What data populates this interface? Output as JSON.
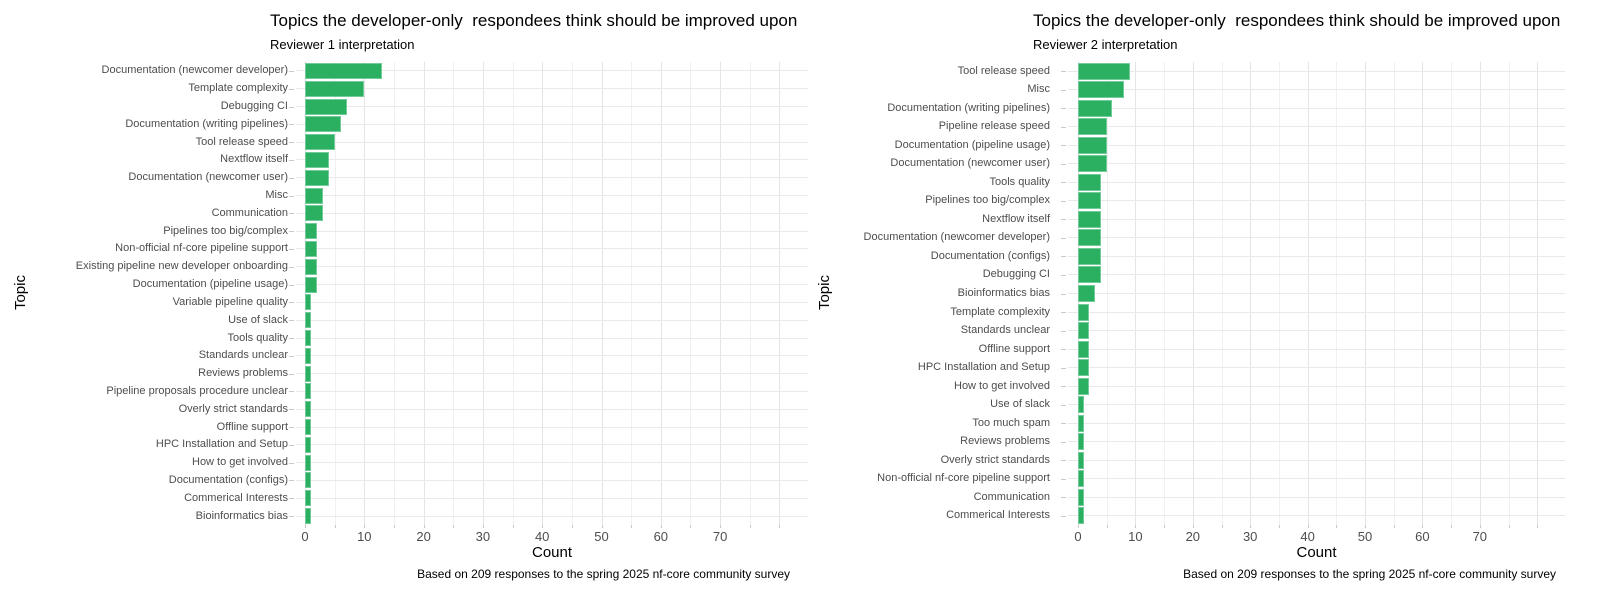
{
  "chart_data": [
    {
      "type": "bar",
      "orientation": "horizontal",
      "title": "Topics the developer-only  respondees think should be improved upon",
      "subtitle": "Reviewer 1 interpretation",
      "xlabel": "Count",
      "ylabel": "Topic",
      "caption": "Based on 209 responses to the spring 2025 nf-core community survey",
      "x_ticks": [
        0,
        10,
        20,
        30,
        40,
        50,
        60,
        70
      ],
      "xlim": [
        0,
        84
      ],
      "grid": true,
      "bar_color": "#2bb062",
      "categories": [
        "Documentation (newcomer developer)",
        "Template complexity",
        "Debugging CI",
        "Documentation (writing pipelines)",
        "Tool release speed",
        "Nextflow itself",
        "Documentation (newcomer user)",
        "Misc",
        "Communication",
        "Pipelines too big/complex",
        "Non-official nf-core pipeline support",
        "Existing pipeline new developer onboarding",
        "Documentation (pipeline usage)",
        "Variable pipeline quality",
        "Use of slack",
        "Tools quality",
        "Standards unclear",
        "Reviews problems",
        "Pipeline proposals procedure unclear",
        "Overly strict standards",
        "Offline support",
        "HPC Installation and Setup",
        "How to get involved",
        "Documentation (configs)",
        "Commerical Interests",
        "Bioinformatics bias"
      ],
      "values": [
        13,
        10,
        7,
        6,
        5,
        4,
        4,
        3,
        3,
        2,
        2,
        2,
        2,
        1,
        1,
        1,
        1,
        1,
        1,
        1,
        1,
        1,
        1,
        1,
        1,
        1
      ]
    },
    {
      "type": "bar",
      "orientation": "horizontal",
      "title": "Topics the developer-only  respondees think should be improved upon",
      "subtitle": "Reviewer 2 interpretation",
      "xlabel": "Count",
      "ylabel": "Topic",
      "caption": "Based on 209 responses to the spring 2025 nf-core community survey",
      "x_ticks": [
        0,
        10,
        20,
        30,
        40,
        50,
        60,
        70
      ],
      "xlim": [
        0,
        84
      ],
      "grid": true,
      "bar_color": "#2bb062",
      "categories": [
        "Tool release speed",
        "Misc",
        "Documentation (writing pipelines)",
        "Pipeline release speed",
        "Documentation (pipeline usage)",
        "Documentation (newcomer user)",
        "Tools quality",
        "Pipelines too big/complex",
        "Nextflow itself",
        "Documentation (newcomer developer)",
        "Documentation (configs)",
        "Debugging CI",
        "Bioinformatics bias",
        "Template complexity",
        "Standards unclear",
        "Offline support",
        "HPC Installation and Setup",
        "How to get involved",
        "Use of slack",
        "Too much spam",
        "Reviews problems",
        "Overly strict standards",
        "Non-official nf-core pipeline support",
        "Communication",
        "Commerical Interests"
      ],
      "values": [
        9,
        8,
        6,
        5,
        5,
        5,
        4,
        4,
        4,
        4,
        4,
        4,
        3,
        2,
        2,
        2,
        2,
        2,
        1,
        1,
        1,
        1,
        1,
        1,
        1
      ]
    }
  ]
}
